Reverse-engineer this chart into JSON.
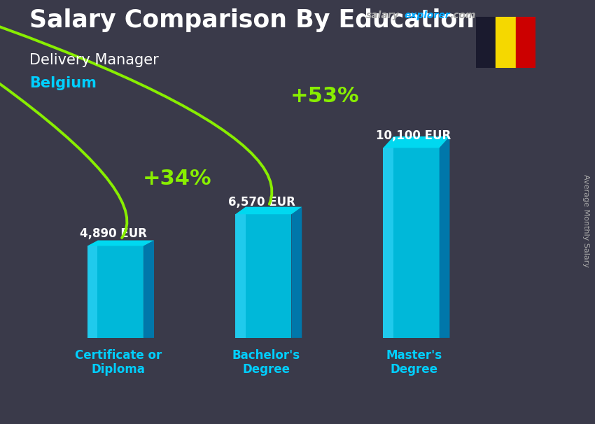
{
  "title_main": "Salary Comparison By Education",
  "subtitle1": "Delivery Manager",
  "subtitle2": "Belgium",
  "ylabel": "Average Monthly Salary",
  "categories": [
    "Certificate or\nDiploma",
    "Bachelor's\nDegree",
    "Master's\nDegree"
  ],
  "values": [
    4890,
    6570,
    10100
  ],
  "value_labels": [
    "4,890 EUR",
    "6,570 EUR",
    "10,100 EUR"
  ],
  "pct_labels": [
    "+34%",
    "+53%"
  ],
  "bar_front_color": "#00b8d9",
  "bar_top_color": "#00d8f0",
  "bar_side_color": "#0077aa",
  "bar_highlight": "#40ddff",
  "bg_color": "#3a3a4a",
  "title_color": "#ffffff",
  "subtitle1_color": "#ffffff",
  "subtitle2_color": "#00cfff",
  "category_color": "#00cfff",
  "value_color": "#ffffff",
  "pct_color": "#88ee00",
  "arrow_color": "#88ee00",
  "website_gray": "#aaaaaa",
  "website_blue": "#00aaff",
  "flag_black": "#1a1a2e",
  "flag_yellow": "#f5d800",
  "flag_red": "#cc0000",
  "ylabel_color": "#aaaaaa",
  "ylim_max": 13000,
  "bar_width": 0.38,
  "title_fontsize": 25,
  "subtitle1_fontsize": 15,
  "subtitle2_fontsize": 15,
  "value_fontsize": 12,
  "pct_fontsize": 22,
  "category_fontsize": 12,
  "ylabel_fontsize": 8
}
